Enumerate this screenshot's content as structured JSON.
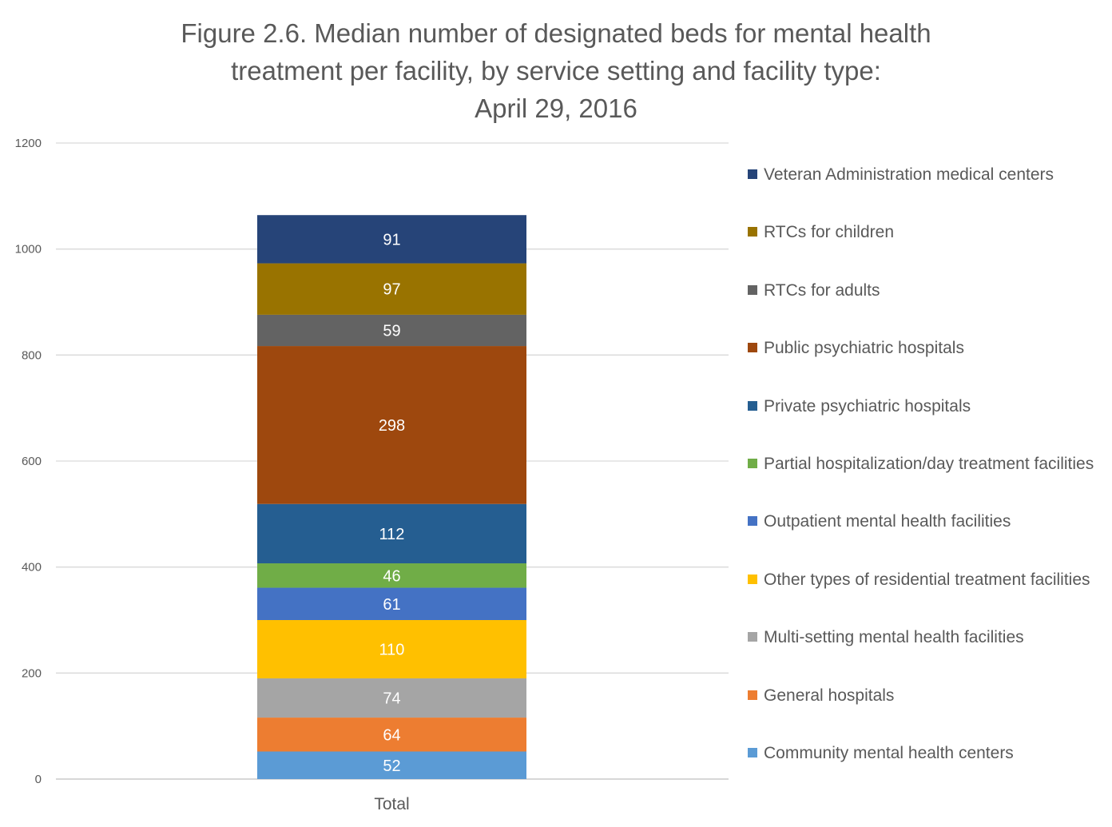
{
  "chart_data": {
    "type": "bar",
    "stacked": true,
    "title_lines": [
      "Figure 2.6. Median number of designated beds for mental health",
      "treatment per facility, by service setting and facility type:",
      "April 29, 2016"
    ],
    "categories": [
      "Total"
    ],
    "ylim": [
      0,
      1200
    ],
    "yticks": [
      0,
      200,
      400,
      600,
      800,
      1000,
      1200
    ],
    "grid": true,
    "legend_position": "right",
    "series": [
      {
        "name": "Community mental health centers",
        "values": [
          52
        ],
        "color": "#5B9BD5"
      },
      {
        "name": "General hospitals",
        "values": [
          64
        ],
        "color": "#ED7D31"
      },
      {
        "name": "Multi-setting mental health facilities",
        "values": [
          74
        ],
        "color": "#A5A5A5"
      },
      {
        "name": "Other types of residential treatment facilities",
        "values": [
          110
        ],
        "color": "#FFC000"
      },
      {
        "name": "Outpatient mental health facilities",
        "values": [
          61
        ],
        "color": "#4472C4"
      },
      {
        "name": "Partial hospitalization/day treatment facilities",
        "values": [
          46
        ],
        "color": "#70AD47"
      },
      {
        "name": "Private psychiatric hospitals",
        "values": [
          112
        ],
        "color": "#255E91"
      },
      {
        "name": "Public psychiatric hospitals",
        "values": [
          298
        ],
        "color": "#9E480E"
      },
      {
        "name": "RTCs for adults",
        "values": [
          59
        ],
        "color": "#636363"
      },
      {
        "name": "RTCs for children",
        "values": [
          97
        ],
        "color": "#997300"
      },
      {
        "name": "Veteran Administration medical centers",
        "values": [
          91
        ],
        "color": "#264478"
      }
    ]
  }
}
